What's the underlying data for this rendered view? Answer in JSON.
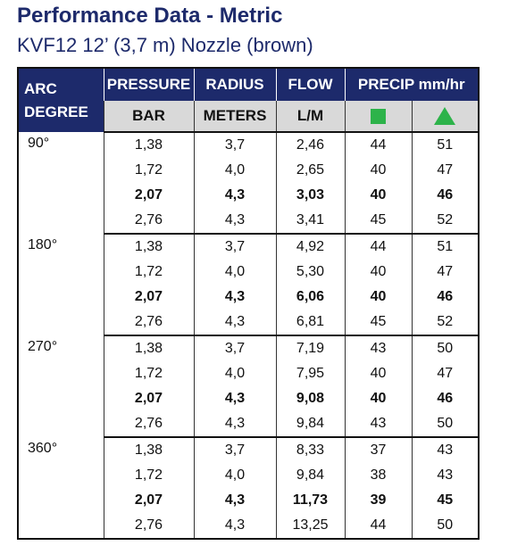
{
  "header": {
    "title": "Performance Data -  Metric",
    "subtitle": "KVF12  12’ (3,7 m) Nozzle (brown)"
  },
  "table": {
    "columns": {
      "arc": [
        "ARC",
        "DEGREE"
      ],
      "pressure": "PRESSURE",
      "radius": "RADIUS",
      "flow": "FLOW",
      "precip": "PRECIP mm/hr",
      "units": [
        "BAR",
        "METERS",
        "L/M"
      ]
    },
    "groups": [
      {
        "arc": "90°",
        "rows": [
          [
            "1,38",
            "3,7",
            "2,46",
            "44",
            "51"
          ],
          [
            "1,72",
            "4,0",
            "2,65",
            "40",
            "47"
          ],
          [
            "2,07",
            "4,3",
            "3,03",
            "40",
            "46"
          ],
          [
            "2,76",
            "4,3",
            "3,41",
            "45",
            "52"
          ]
        ]
      },
      {
        "arc": "180°",
        "rows": [
          [
            "1,38",
            "3,7",
            "4,92",
            "44",
            "51"
          ],
          [
            "1,72",
            "4,0",
            "5,30",
            "40",
            "47"
          ],
          [
            "2,07",
            "4,3",
            "6,06",
            "40",
            "46"
          ],
          [
            "2,76",
            "4,3",
            "6,81",
            "45",
            "52"
          ]
        ]
      },
      {
        "arc": "270°",
        "rows": [
          [
            "1,38",
            "3,7",
            "7,19",
            "43",
            "50"
          ],
          [
            "1,72",
            "4,0",
            "7,95",
            "40",
            "47"
          ],
          [
            "2,07",
            "4,3",
            "9,08",
            "40",
            "46"
          ],
          [
            "2,76",
            "4,3",
            "9,84",
            "43",
            "50"
          ]
        ]
      },
      {
        "arc": "360°",
        "rows": [
          [
            "1,38",
            "3,7",
            "8,33",
            "37",
            "43"
          ],
          [
            "1,72",
            "4,0",
            "9,84",
            "38",
            "43"
          ],
          [
            "2,07",
            "4,3",
            "11,73",
            "39",
            "45"
          ],
          [
            "2,76",
            "4,3",
            "13,25",
            "44",
            "50"
          ]
        ]
      }
    ]
  }
}
